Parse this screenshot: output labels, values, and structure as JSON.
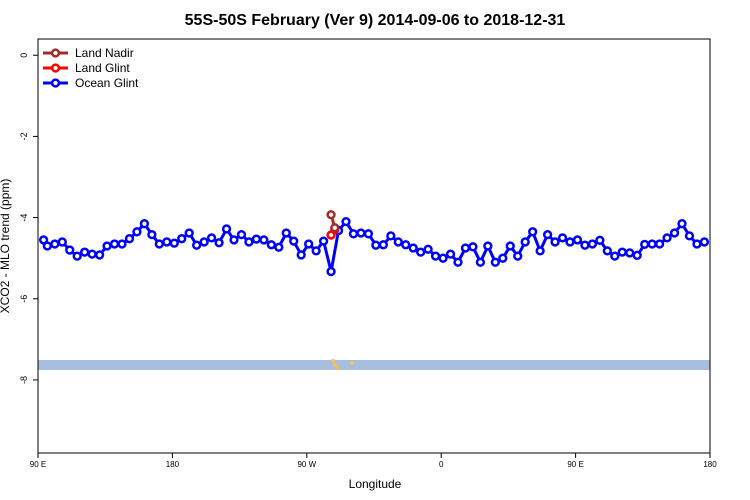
{
  "chart_data": {
    "type": "line",
    "title": "55S-50S February (Ver 9)   2014-09-06 to 2018-12-31",
    "xlabel": "Longitude",
    "ylabel": "XCO2 - MLO trend (ppm)",
    "xlim": [
      90,
      450
    ],
    "ylim": [
      -9.8,
      0.4
    ],
    "x_ticks": [
      {
        "value": 90,
        "label": "90 E"
      },
      {
        "value": 162,
        "label": "180"
      },
      {
        "value": 234,
        "label": "90 W"
      },
      {
        "value": 306,
        "label": "0"
      },
      {
        "value": 378,
        "label": "90 E"
      },
      {
        "value": 450,
        "label": "180"
      }
    ],
    "y_ticks": [
      {
        "value": 0,
        "label": "0"
      },
      {
        "value": -2,
        "label": "-2"
      },
      {
        "value": -4,
        "label": "-4"
      },
      {
        "value": -6,
        "label": "-6"
      },
      {
        "value": -8,
        "label": "-8"
      }
    ],
    "legend": {
      "position": "top-left",
      "entries": [
        {
          "name": "Land Nadir",
          "color": "#a52a2a"
        },
        {
          "name": "Land Glint",
          "color": "#ff0000"
        },
        {
          "name": "Ocean Glint",
          "color": "#0000ff"
        }
      ]
    },
    "series": [
      {
        "name": "Land Nadir",
        "color": "#a52a2a",
        "x": [
          247,
          249
        ],
        "y": [
          -3.93,
          -4.25
        ]
      },
      {
        "name": "Land Glint",
        "color": "#ff0000",
        "x": [
          247,
          249
        ],
        "y": [
          -4.43,
          -4.3
        ]
      },
      {
        "name": "Ocean Glint",
        "color": "#0000ff",
        "x": [
          93,
          95,
          99,
          103,
          107,
          111,
          115,
          119,
          123,
          127,
          131,
          135,
          139,
          143,
          147,
          151,
          155,
          159,
          163,
          167,
          171,
          175,
          179,
          183,
          187,
          191,
          195,
          199,
          203,
          207,
          211,
          215,
          219,
          223,
          227,
          231,
          235,
          239,
          243,
          247,
          251,
          255,
          259,
          263,
          267,
          271,
          275,
          279,
          283,
          287,
          291,
          295,
          299,
          303,
          307,
          311,
          315,
          319,
          323,
          327,
          331,
          335,
          339,
          343,
          347,
          351,
          355,
          359,
          363,
          367,
          371,
          375,
          379,
          383,
          387,
          391,
          395,
          399,
          403,
          407,
          411,
          415,
          419,
          423,
          427,
          431,
          435,
          439,
          443,
          447
        ],
        "y": [
          -4.55,
          -4.7,
          -4.65,
          -4.6,
          -4.8,
          -4.95,
          -4.85,
          -4.9,
          -4.92,
          -4.7,
          -4.65,
          -4.65,
          -4.52,
          -4.35,
          -4.15,
          -4.42,
          -4.65,
          -4.6,
          -4.63,
          -4.52,
          -4.38,
          -4.68,
          -4.6,
          -4.5,
          -4.62,
          -4.28,
          -4.55,
          -4.42,
          -4.6,
          -4.53,
          -4.55,
          -4.67,
          -4.73,
          -4.38,
          -4.58,
          -4.92,
          -4.65,
          -4.82,
          -4.58,
          -5.33,
          -4.32,
          -4.1,
          -4.4,
          -4.38,
          -4.4,
          -4.68,
          -4.67,
          -4.45,
          -4.6,
          -4.67,
          -4.75,
          -4.85,
          -4.78,
          -4.95,
          -5.0,
          -4.9,
          -5.1,
          -4.75,
          -4.72,
          -5.1,
          -4.7,
          -5.1,
          -5.0,
          -4.7,
          -4.95,
          -4.6,
          -4.35,
          -4.82,
          -4.42,
          -4.6,
          -4.5,
          -4.6,
          -4.55,
          -4.68,
          -4.65,
          -4.56,
          -4.82,
          -4.95,
          -4.85,
          -4.87,
          -4.93,
          -4.66,
          -4.65,
          -4.65,
          -4.5,
          -4.38,
          -4.15,
          -4.45,
          -4.65,
          -4.6
        ]
      }
    ],
    "colors": {
      "band": "#a8bedf",
      "band_marks": "#f0c060",
      "frame": "#000000"
    }
  }
}
